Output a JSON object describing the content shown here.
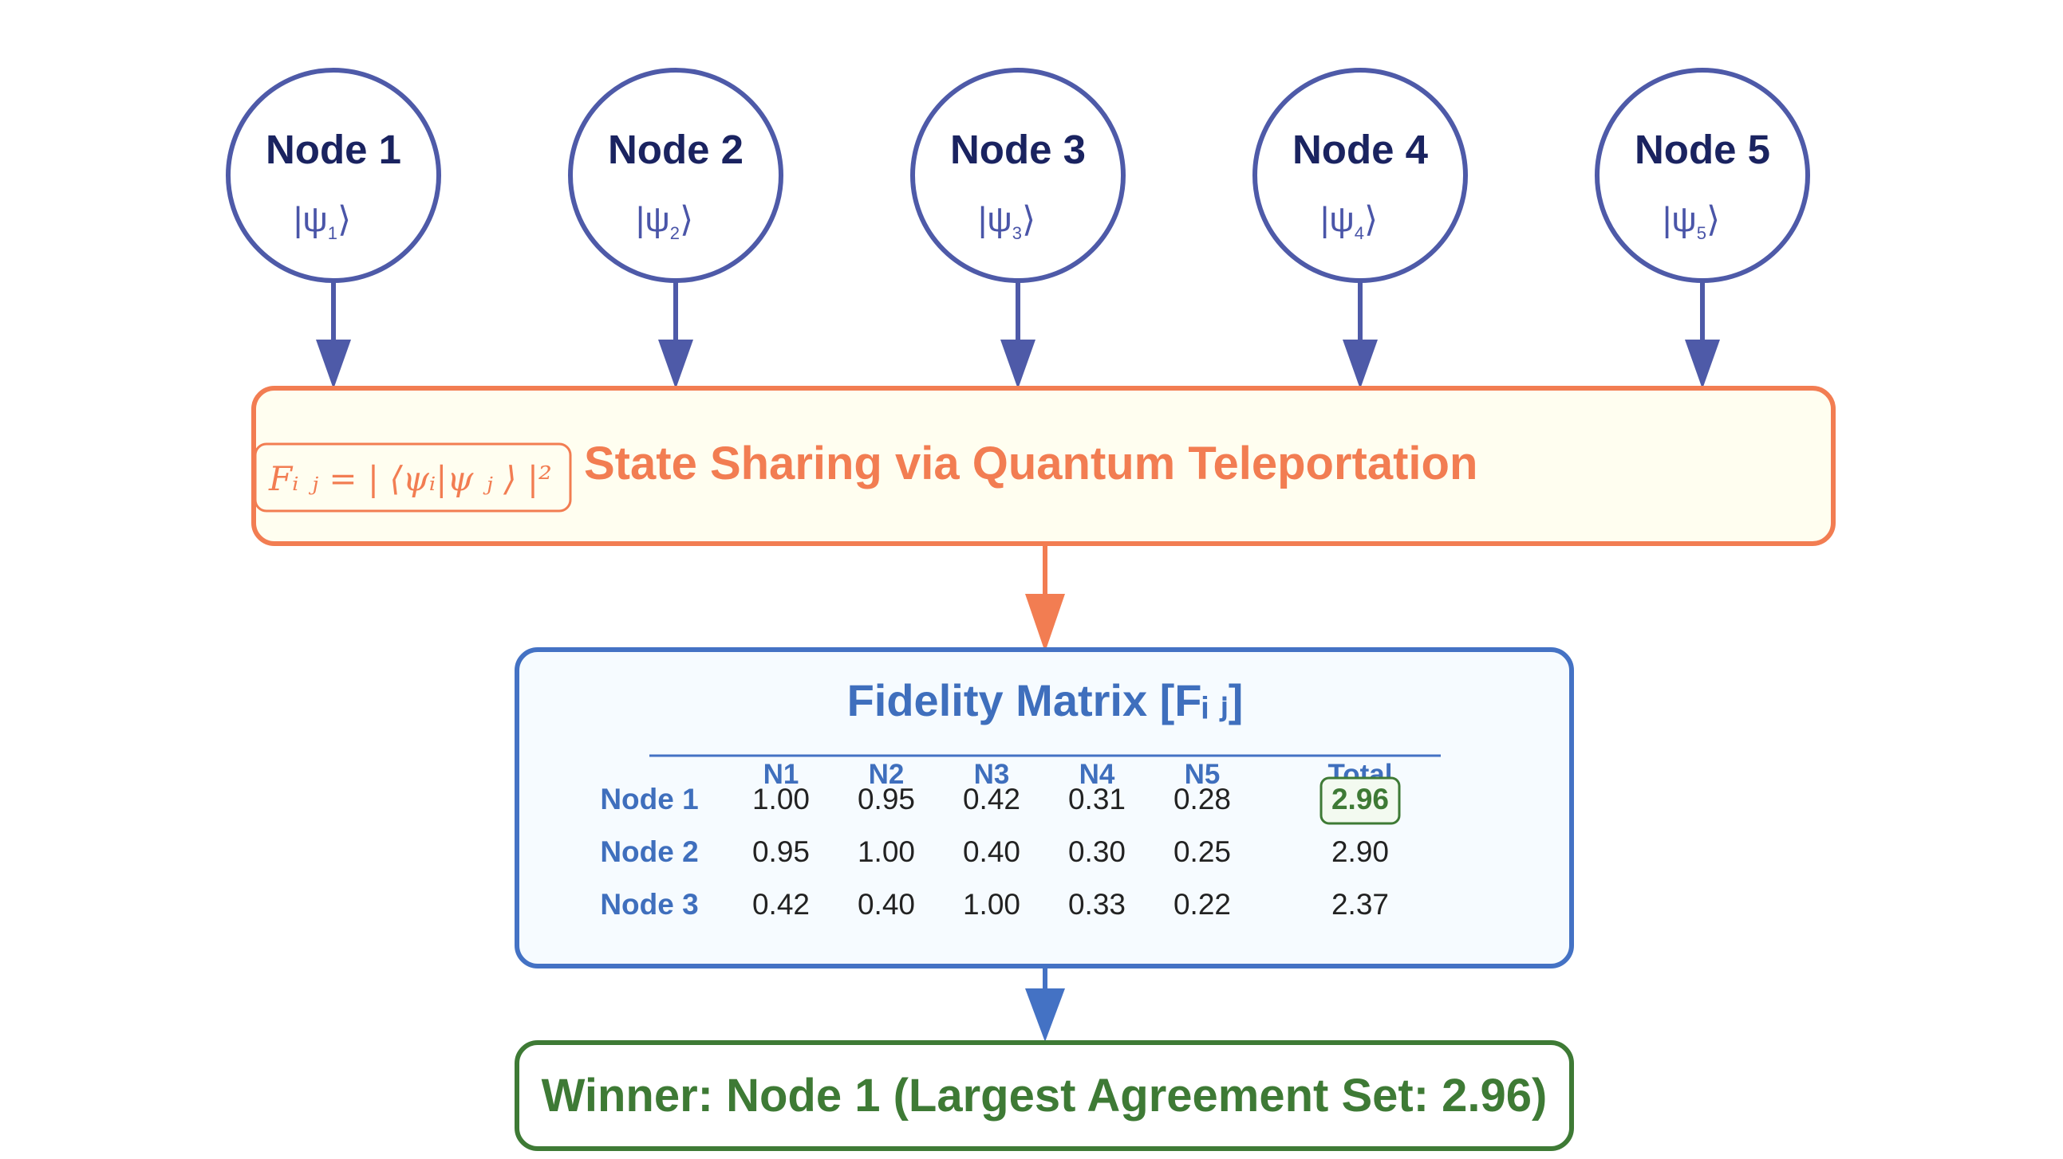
{
  "nodes": [
    {
      "label": "Node 1",
      "state_main": "|ψ",
      "state_sub": "1",
      "state_end": "⟩"
    },
    {
      "label": "Node 2",
      "state_main": "|ψ",
      "state_sub": "2",
      "state_end": "⟩"
    },
    {
      "label": "Node 3",
      "state_main": "|ψ",
      "state_sub": "3",
      "state_end": "⟩"
    },
    {
      "label": "Node 4",
      "state_main": "|ψ",
      "state_sub": "4",
      "state_end": "⟩"
    },
    {
      "label": "Node 5",
      "state_main": "|ψ",
      "state_sub": "5",
      "state_end": "⟩"
    }
  ],
  "sharing": {
    "title": "State Sharing via Quantum Teleportation",
    "formula": "Fᵢ ⱼ = | ⟨ψᵢ|ψ ⱼ ⟩ |²"
  },
  "matrix": {
    "title": "Fidelity Matrix [Fᵢ ⱼ]",
    "columns": [
      "N1",
      "N2",
      "N3",
      "N4",
      "N5",
      "Total"
    ],
    "rows": [
      {
        "label": "Node 1",
        "values": [
          "1.00",
          "0.95",
          "0.42",
          "0.31",
          "0.28"
        ],
        "total": "2.96"
      },
      {
        "label": "Node 2",
        "values": [
          "0.95",
          "1.00",
          "0.40",
          "0.30",
          "0.25"
        ],
        "total": "2.90"
      },
      {
        "label": "Node 3",
        "values": [
          "0.42",
          "0.40",
          "1.00",
          "0.33",
          "0.22"
        ],
        "total": "2.37"
      }
    ],
    "highlight_row": 0
  },
  "winner": {
    "text": "Winner: Node 1 (Largest Agreement Set: 2.96)"
  },
  "colors": {
    "node_stroke": "#4e5aa8",
    "node_text": "#1a2360",
    "sharing_stroke": "#f27d52",
    "sharing_fill": "#fffef0",
    "matrix_stroke": "#4472c4",
    "matrix_fill": "#f6fbff",
    "winner_stroke": "#3e7a35",
    "winner_fill": "#ffffff"
  }
}
